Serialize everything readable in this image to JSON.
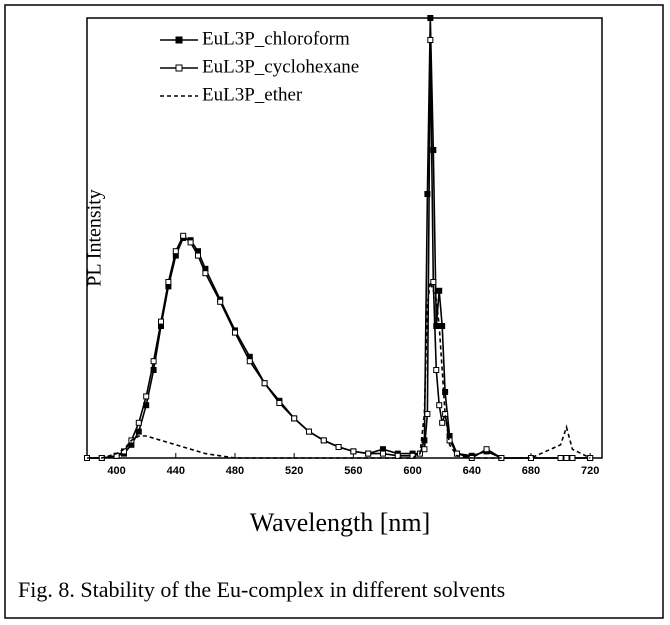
{
  "chart_data": {
    "type": "line",
    "x_label": "Wavelength [nm]",
    "y_label": "PL Intensity",
    "caption": "Fig. 8. Stability of the Eu-complex in different solvents",
    "x": [
      380,
      390,
      400,
      405,
      410,
      415,
      420,
      425,
      430,
      435,
      440,
      445,
      450,
      455,
      460,
      470,
      480,
      490,
      500,
      510,
      520,
      530,
      540,
      550,
      560,
      570,
      580,
      590,
      600,
      605,
      608,
      610,
      612,
      614,
      616,
      618,
      620,
      622,
      625,
      630,
      640,
      650,
      660,
      680,
      700,
      704,
      708,
      720
    ],
    "series": [
      {
        "name": "EuL3P_chloroform",
        "color": "#000000",
        "style": "solid",
        "marker": "filled-square",
        "values": [
          0,
          0,
          0.5,
          1,
          3,
          6,
          12,
          20,
          30,
          39,
          46,
          50,
          49.5,
          47,
          43,
          36,
          29,
          23,
          17,
          13,
          9,
          6,
          4,
          2.5,
          1.5,
          1,
          2,
          1,
          1,
          1,
          4,
          60,
          100,
          70,
          30,
          38,
          30,
          15,
          5,
          1,
          0.5,
          1.5,
          0,
          0,
          0,
          0,
          0,
          0
        ]
      },
      {
        "name": "EuL3P_cyclohexane",
        "color": "#000000",
        "style": "solid",
        "marker": "open-square",
        "values": [
          0,
          0,
          0.5,
          1.5,
          4,
          8,
          14,
          22,
          31,
          40,
          47,
          50.5,
          49,
          46,
          42,
          35.5,
          28.5,
          22,
          17,
          12.5,
          9,
          6,
          4,
          2.5,
          1.5,
          1,
          1,
          0.5,
          0.5,
          1,
          2,
          10,
          95,
          40,
          20,
          12,
          8,
          10,
          4,
          1,
          0,
          2,
          0,
          0,
          0,
          0,
          0,
          0
        ]
      },
      {
        "name": "EuL3P_ether",
        "color": "#000000",
        "style": "dashed",
        "marker": "none",
        "values": [
          0,
          0,
          1,
          2,
          4,
          5,
          5,
          4.5,
          4,
          3.5,
          3,
          2.5,
          2,
          1.5,
          1,
          0.5,
          0,
          0,
          0,
          0,
          0,
          0,
          0,
          0,
          0,
          0,
          0,
          0,
          0,
          1,
          10,
          35,
          40,
          38,
          36,
          30,
          20,
          10,
          3,
          0.5,
          0,
          0,
          0,
          0,
          3,
          7,
          2,
          0
        ]
      }
    ],
    "xlim": [
      380,
      728
    ],
    "ylim": [
      0,
      100
    ],
    "xticks": [
      400,
      440,
      480,
      520,
      560,
      600,
      640,
      680,
      720
    ],
    "legend": "upper-left"
  }
}
